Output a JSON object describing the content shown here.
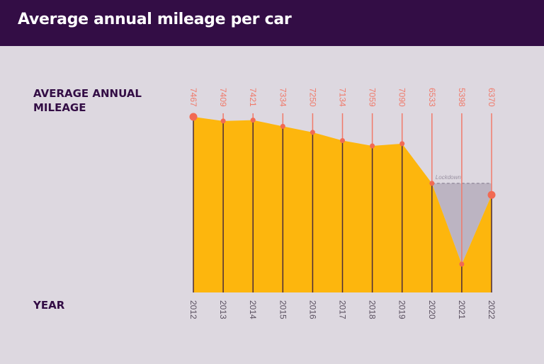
{
  "header": {
    "title": "Average annual mileage per car"
  },
  "chart_data": {
    "type": "area",
    "title": "Average annual mileage per car",
    "ylabel": "AVERAGE ANNUAL MILEAGE",
    "xlabel": "YEAR",
    "categories": [
      "2012",
      "2013",
      "2014",
      "2015",
      "2016",
      "2017",
      "2018",
      "2019",
      "2020",
      "2021",
      "2022"
    ],
    "values": [
      7467,
      7409,
      7421,
      7334,
      7250,
      7134,
      7059,
      7090,
      6533,
      5398,
      6370
    ],
    "ylim": [
      5000,
      7467
    ],
    "annotation": {
      "label": "Lockdown",
      "from": "2020",
      "to": "2022",
      "reference_value": 6533
    },
    "colors": {
      "area": "#fdb60d",
      "marker": "#f26a53",
      "stem_upper": "#f07a6a",
      "stem_lower": "#4a2a3a",
      "lockdown_fill": "#bcb4c2",
      "lockdown_line": "#8e8698"
    },
    "grid": false,
    "legend": "none"
  }
}
